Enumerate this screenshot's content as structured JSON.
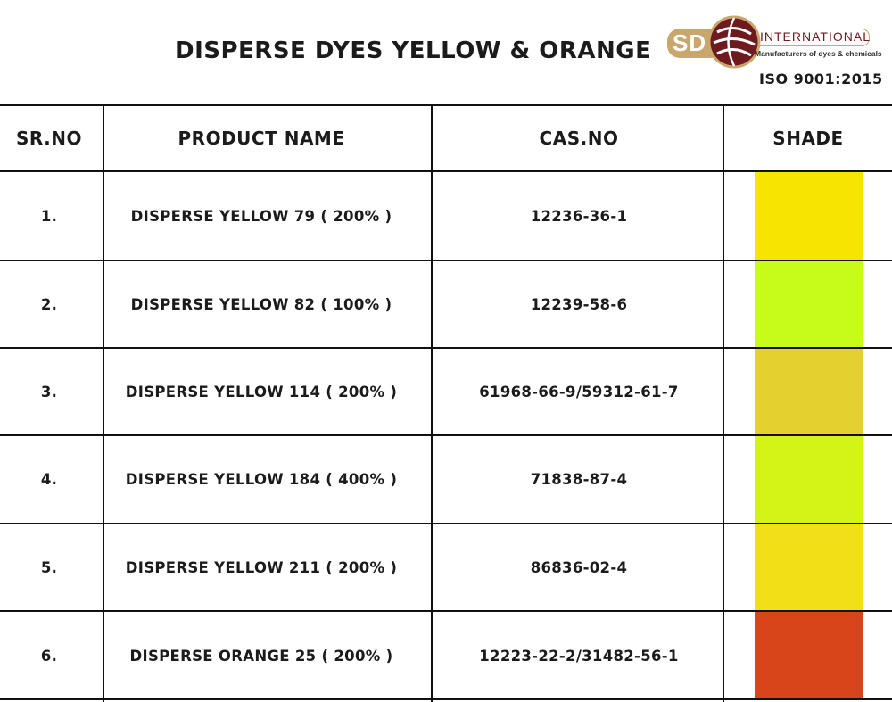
{
  "page": {
    "title": "DISPERSE DYES YELLOW & ORANGE",
    "iso": "ISO 9001:2015"
  },
  "logo": {
    "abbr": "SD",
    "name": "INTERNATIONAL",
    "tagline": "Manufacturers of dyes & chemicals",
    "colors": {
      "gold": "#c9a66b",
      "maroon": "#6e1a1f"
    }
  },
  "table": {
    "headers": [
      "SR.NO",
      "PRODUCT NAME",
      "CAS.NO",
      "SHADE"
    ],
    "rows": [
      {
        "sr": "1.",
        "name": "DISPERSE YELLOW 79 ( 200% )",
        "cas": "12236-36-1",
        "shade": "#f7e400"
      },
      {
        "sr": "2.",
        "name": "DISPERSE YELLOW 82 ( 100% )",
        "cas": "12239-58-6",
        "shade": "#c7fb1a"
      },
      {
        "sr": "3.",
        "name": "DISPERSE YELLOW 114 ( 200% )",
        "cas": "61968-66-9/59312-61-7",
        "shade": "#e4d12f"
      },
      {
        "sr": "4.",
        "name": "DISPERSE YELLOW 184 ( 400% )",
        "cas": "71838-87-4",
        "shade": "#d4f316"
      },
      {
        "sr": "5.",
        "name": "DISPERSE YELLOW 211 ( 200% )",
        "cas": "86836-02-4",
        "shade": "#f3df18"
      },
      {
        "sr": "6.",
        "name": "DISPERSE ORANGE 25 ( 200% )",
        "cas": "12223-22-2/31482-56-1",
        "shade": "#d9451a"
      }
    ]
  }
}
